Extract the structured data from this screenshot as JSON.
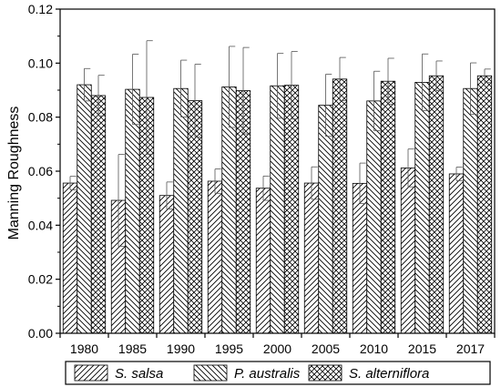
{
  "chart_data": {
    "type": "bar",
    "ylabel": "Manning Roughness",
    "xlabel": "",
    "ylim": [
      0.0,
      0.12
    ],
    "yticks": [
      "0.00",
      "0.02",
      "0.04",
      "0.06",
      "0.08",
      "0.10",
      "0.12"
    ],
    "categories": [
      "1980",
      "1985",
      "1990",
      "1995",
      "2000",
      "2005",
      "2010",
      "2015",
      "2017"
    ],
    "series": [
      {
        "name": "S. salsa",
        "pattern": "hatch-backslash",
        "values": [
          0.0556,
          0.0492,
          0.051,
          0.0563,
          0.0537,
          0.0556,
          0.0555,
          0.0612,
          0.059
        ],
        "errors": [
          0.0025,
          0.017,
          0.005,
          0.0045,
          0.0045,
          0.006,
          0.0075,
          0.007,
          0.0025
        ]
      },
      {
        "name": "P. australis",
        "pattern": "hatch-slash",
        "values": [
          0.092,
          0.0903,
          0.0906,
          0.0912,
          0.0916,
          0.0844,
          0.086,
          0.0929,
          0.0906
        ],
        "errors": [
          0.006,
          0.013,
          0.0105,
          0.015,
          0.012,
          0.0115,
          0.011,
          0.0105,
          0.0095
        ]
      },
      {
        "name": "S. alterniflora",
        "pattern": "crosshatch",
        "values": [
          0.088,
          0.0873,
          0.0861,
          0.0898,
          0.0918,
          0.0941,
          0.0933,
          0.0953,
          0.0953
        ],
        "errors": [
          0.0075,
          0.021,
          0.0135,
          0.016,
          0.0125,
          0.008,
          0.0085,
          0.0055,
          0.0025
        ]
      }
    ],
    "legend": {
      "position": "bottom"
    },
    "grid": false
  }
}
